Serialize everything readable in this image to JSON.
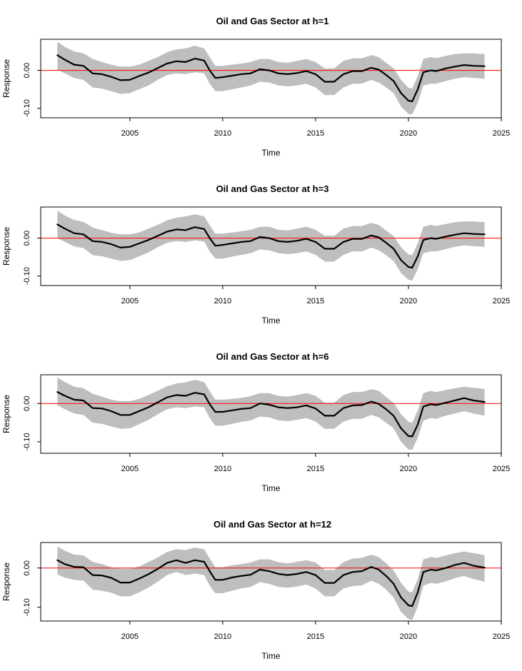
{
  "colors": {
    "band": "#bebebe",
    "line": "#000000",
    "zero_line": "#ff0000",
    "frame": "#000000",
    "background": "#ffffff"
  },
  "chart_data": [
    {
      "type": "line",
      "title": "Oil and Gas Sector  at h=1",
      "xlabel": "Time",
      "ylabel": "Response",
      "xlim": [
        2000.2,
        2025
      ],
      "ylim": [
        -0.125,
        0.082
      ],
      "xticks": [
        2005,
        2010,
        2015,
        2020,
        2025
      ],
      "xtick_labels": [
        "2005",
        "2010",
        "2015",
        "2020",
        "2025"
      ],
      "yticks": [
        -0.1,
        0.0
      ],
      "ytick_labels": [
        "-0.10",
        "0.00"
      ],
      "reference_line": 0,
      "x": [
        2001.1,
        2001.5,
        2002.0,
        2002.5,
        2003.0,
        2003.5,
        2004.0,
        2004.5,
        2005.0,
        2005.5,
        2006.0,
        2006.5,
        2007.0,
        2007.5,
        2008.0,
        2008.5,
        2009.0,
        2009.3,
        2009.6,
        2010.0,
        2010.5,
        2011.0,
        2011.5,
        2012.0,
        2012.5,
        2013.0,
        2013.5,
        2014.0,
        2014.5,
        2015.0,
        2015.5,
        2016.0,
        2016.5,
        2017.0,
        2017.5,
        2018.0,
        2018.4,
        2018.8,
        2019.2,
        2019.6,
        2020.0,
        2020.2,
        2020.5,
        2020.8,
        2021.2,
        2021.5,
        2022.0,
        2022.5,
        2023.0,
        2023.5,
        2024.1
      ],
      "series": [
        {
          "role": "estimate",
          "values": [
            0.04,
            0.028,
            0.015,
            0.012,
            -0.008,
            -0.01,
            -0.017,
            -0.026,
            -0.025,
            -0.015,
            -0.006,
            0.006,
            0.018,
            0.024,
            0.022,
            0.031,
            0.026,
            0.0,
            -0.02,
            -0.018,
            -0.014,
            -0.01,
            -0.008,
            0.003,
            0.0,
            -0.008,
            -0.01,
            -0.007,
            -0.002,
            -0.01,
            -0.03,
            -0.03,
            -0.01,
            -0.002,
            -0.002,
            0.007,
            0.002,
            -0.012,
            -0.028,
            -0.06,
            -0.08,
            -0.082,
            -0.05,
            -0.005,
            0.0,
            -0.002,
            0.005,
            0.01,
            0.014,
            0.012,
            0.011
          ]
        },
        {
          "role": "upper",
          "values": [
            0.075,
            0.062,
            0.05,
            0.045,
            0.03,
            0.022,
            0.015,
            0.01,
            0.01,
            0.015,
            0.025,
            0.035,
            0.048,
            0.055,
            0.058,
            0.065,
            0.058,
            0.035,
            0.012,
            0.012,
            0.015,
            0.018,
            0.022,
            0.03,
            0.03,
            0.022,
            0.02,
            0.025,
            0.03,
            0.022,
            0.005,
            0.005,
            0.025,
            0.032,
            0.032,
            0.04,
            0.035,
            0.02,
            0.005,
            -0.025,
            -0.046,
            -0.048,
            -0.015,
            0.03,
            0.035,
            0.032,
            0.038,
            0.043,
            0.045,
            0.045,
            0.043
          ]
        },
        {
          "role": "lower",
          "values": [
            0.002,
            -0.008,
            -0.02,
            -0.025,
            -0.045,
            -0.048,
            -0.055,
            -0.062,
            -0.06,
            -0.05,
            -0.04,
            -0.025,
            -0.012,
            -0.008,
            -0.01,
            -0.005,
            -0.008,
            -0.035,
            -0.055,
            -0.055,
            -0.05,
            -0.045,
            -0.04,
            -0.03,
            -0.032,
            -0.04,
            -0.042,
            -0.04,
            -0.035,
            -0.045,
            -0.065,
            -0.065,
            -0.045,
            -0.035,
            -0.035,
            -0.025,
            -0.032,
            -0.045,
            -0.06,
            -0.095,
            -0.115,
            -0.116,
            -0.085,
            -0.04,
            -0.035,
            -0.035,
            -0.028,
            -0.022,
            -0.018,
            -0.02,
            -0.022
          ]
        }
      ]
    },
    {
      "type": "line",
      "title": "Oil and Gas Sector  at h=3",
      "xlabel": "Time",
      "ylabel": "Response",
      "xlim": [
        2000.2,
        2025
      ],
      "ylim": [
        -0.125,
        0.082
      ],
      "xticks": [
        2005,
        2010,
        2015,
        2020,
        2025
      ],
      "xtick_labels": [
        "2005",
        "2010",
        "2015",
        "2020",
        "2025"
      ],
      "yticks": [
        -0.1,
        0.0
      ],
      "ytick_labels": [
        "-0.10",
        "0.00"
      ],
      "reference_line": 0,
      "x": [
        2001.1,
        2001.5,
        2002.0,
        2002.5,
        2003.0,
        2003.5,
        2004.0,
        2004.5,
        2005.0,
        2005.5,
        2006.0,
        2006.5,
        2007.0,
        2007.5,
        2008.0,
        2008.5,
        2009.0,
        2009.3,
        2009.6,
        2010.0,
        2010.5,
        2011.0,
        2011.5,
        2012.0,
        2012.5,
        2013.0,
        2013.5,
        2014.0,
        2014.5,
        2015.0,
        2015.5,
        2016.0,
        2016.5,
        2017.0,
        2017.5,
        2018.0,
        2018.4,
        2018.8,
        2019.2,
        2019.6,
        2020.0,
        2020.2,
        2020.5,
        2020.8,
        2021.2,
        2021.5,
        2022.0,
        2022.5,
        2023.0,
        2023.5,
        2024.1
      ],
      "series": [
        {
          "role": "estimate",
          "values": [
            0.036,
            0.025,
            0.013,
            0.01,
            -0.008,
            -0.01,
            -0.016,
            -0.025,
            -0.023,
            -0.014,
            -0.005,
            0.006,
            0.017,
            0.023,
            0.021,
            0.029,
            0.024,
            0.0,
            -0.02,
            -0.018,
            -0.014,
            -0.01,
            -0.008,
            0.003,
            0.0,
            -0.008,
            -0.01,
            -0.007,
            -0.002,
            -0.01,
            -0.028,
            -0.028,
            -0.01,
            -0.002,
            -0.002,
            0.007,
            0.002,
            -0.012,
            -0.028,
            -0.058,
            -0.076,
            -0.078,
            -0.048,
            -0.005,
            0.0,
            -0.002,
            0.004,
            0.009,
            0.013,
            0.011,
            0.01
          ]
        },
        {
          "role": "upper",
          "values": [
            0.072,
            0.06,
            0.048,
            0.043,
            0.028,
            0.021,
            0.014,
            0.01,
            0.01,
            0.015,
            0.025,
            0.035,
            0.047,
            0.054,
            0.057,
            0.063,
            0.057,
            0.034,
            0.012,
            0.012,
            0.015,
            0.018,
            0.022,
            0.03,
            0.03,
            0.022,
            0.02,
            0.025,
            0.03,
            0.022,
            0.006,
            0.006,
            0.025,
            0.032,
            0.032,
            0.04,
            0.035,
            0.02,
            0.005,
            -0.024,
            -0.043,
            -0.045,
            -0.014,
            0.03,
            0.035,
            0.032,
            0.037,
            0.042,
            0.044,
            0.044,
            0.042
          ]
        },
        {
          "role": "lower",
          "values": [
            0.0,
            -0.01,
            -0.022,
            -0.026,
            -0.045,
            -0.048,
            -0.054,
            -0.06,
            -0.058,
            -0.048,
            -0.038,
            -0.024,
            -0.012,
            -0.008,
            -0.01,
            -0.006,
            -0.009,
            -0.035,
            -0.054,
            -0.054,
            -0.049,
            -0.044,
            -0.04,
            -0.03,
            -0.032,
            -0.04,
            -0.042,
            -0.04,
            -0.035,
            -0.044,
            -0.062,
            -0.062,
            -0.044,
            -0.035,
            -0.035,
            -0.025,
            -0.032,
            -0.045,
            -0.06,
            -0.092,
            -0.11,
            -0.112,
            -0.082,
            -0.04,
            -0.035,
            -0.035,
            -0.029,
            -0.023,
            -0.019,
            -0.021,
            -0.023
          ]
        }
      ]
    },
    {
      "type": "line",
      "title": "Oil and Gas Sector  at h=6",
      "xlabel": "Time",
      "ylabel": "Response",
      "xlim": [
        2000.2,
        2025
      ],
      "ylim": [
        -0.13,
        0.075
      ],
      "xticks": [
        2005,
        2010,
        2015,
        2020,
        2025
      ],
      "xtick_labels": [
        "2005",
        "2010",
        "2015",
        "2020",
        "2025"
      ],
      "yticks": [
        -0.1,
        0.0
      ],
      "ytick_labels": [
        "-0.10",
        "0.00"
      ],
      "reference_line": 0,
      "x": [
        2001.1,
        2001.5,
        2002.0,
        2002.5,
        2003.0,
        2003.5,
        2004.0,
        2004.5,
        2005.0,
        2005.5,
        2006.0,
        2006.5,
        2007.0,
        2007.5,
        2008.0,
        2008.5,
        2009.0,
        2009.3,
        2009.6,
        2010.0,
        2010.5,
        2011.0,
        2011.5,
        2012.0,
        2012.5,
        2013.0,
        2013.5,
        2014.0,
        2014.5,
        2015.0,
        2015.5,
        2016.0,
        2016.5,
        2017.0,
        2017.5,
        2018.0,
        2018.4,
        2018.8,
        2019.2,
        2019.6,
        2020.0,
        2020.2,
        2020.5,
        2020.8,
        2021.2,
        2021.5,
        2022.0,
        2022.5,
        2023.0,
        2023.5,
        2024.1
      ],
      "series": [
        {
          "role": "estimate",
          "values": [
            0.03,
            0.02,
            0.01,
            0.008,
            -0.012,
            -0.013,
            -0.02,
            -0.03,
            -0.03,
            -0.02,
            -0.01,
            0.003,
            0.016,
            0.022,
            0.02,
            0.028,
            0.024,
            -0.002,
            -0.022,
            -0.022,
            -0.018,
            -0.014,
            -0.012,
            0.0,
            -0.003,
            -0.01,
            -0.012,
            -0.01,
            -0.005,
            -0.013,
            -0.032,
            -0.032,
            -0.012,
            -0.005,
            -0.004,
            0.005,
            -0.001,
            -0.015,
            -0.032,
            -0.065,
            -0.085,
            -0.086,
            -0.055,
            -0.008,
            -0.002,
            -0.004,
            0.002,
            0.008,
            0.014,
            0.008,
            0.004
          ]
        },
        {
          "role": "upper",
          "values": [
            0.068,
            0.056,
            0.044,
            0.04,
            0.025,
            0.018,
            0.01,
            0.006,
            0.006,
            0.012,
            0.022,
            0.033,
            0.045,
            0.052,
            0.055,
            0.062,
            0.056,
            0.032,
            0.01,
            0.01,
            0.012,
            0.015,
            0.019,
            0.027,
            0.027,
            0.02,
            0.018,
            0.022,
            0.027,
            0.02,
            0.002,
            0.002,
            0.022,
            0.03,
            0.03,
            0.037,
            0.033,
            0.017,
            0.002,
            -0.028,
            -0.048,
            -0.05,
            -0.018,
            0.027,
            0.033,
            0.03,
            0.035,
            0.04,
            0.044,
            0.041,
            0.038
          ]
        },
        {
          "role": "lower",
          "values": [
            -0.005,
            -0.015,
            -0.026,
            -0.03,
            -0.05,
            -0.053,
            -0.06,
            -0.066,
            -0.065,
            -0.054,
            -0.043,
            -0.028,
            -0.015,
            -0.01,
            -0.012,
            -0.008,
            -0.01,
            -0.038,
            -0.058,
            -0.058,
            -0.053,
            -0.048,
            -0.044,
            -0.034,
            -0.036,
            -0.044,
            -0.046,
            -0.043,
            -0.038,
            -0.047,
            -0.066,
            -0.066,
            -0.047,
            -0.04,
            -0.04,
            -0.03,
            -0.036,
            -0.05,
            -0.065,
            -0.1,
            -0.12,
            -0.121,
            -0.09,
            -0.045,
            -0.038,
            -0.04,
            -0.032,
            -0.026,
            -0.02,
            -0.026,
            -0.032
          ]
        }
      ]
    },
    {
      "type": "line",
      "title": "Oil and Gas Sector  at h=12",
      "xlabel": "Time",
      "ylabel": "Response",
      "xlim": [
        2000.2,
        2025
      ],
      "ylim": [
        -0.135,
        0.065
      ],
      "xticks": [
        2005,
        2010,
        2015,
        2020,
        2025
      ],
      "xtick_labels": [
        "2005",
        "2010",
        "2015",
        "2020",
        "2025"
      ],
      "yticks": [
        -0.1,
        0.0
      ],
      "ytick_labels": [
        "-0.10",
        "0.00"
      ],
      "reference_line": 0,
      "x": [
        2001.1,
        2001.5,
        2002.0,
        2002.5,
        2003.0,
        2003.5,
        2004.0,
        2004.5,
        2005.0,
        2005.5,
        2006.0,
        2006.5,
        2007.0,
        2007.5,
        2008.0,
        2008.5,
        2009.0,
        2009.3,
        2009.6,
        2010.0,
        2010.5,
        2011.0,
        2011.5,
        2012.0,
        2012.5,
        2013.0,
        2013.5,
        2014.0,
        2014.5,
        2015.0,
        2015.5,
        2016.0,
        2016.5,
        2017.0,
        2017.5,
        2018.0,
        2018.4,
        2018.8,
        2019.2,
        2019.6,
        2020.0,
        2020.2,
        2020.5,
        2020.8,
        2021.2,
        2021.5,
        2022.0,
        2022.5,
        2023.0,
        2023.5,
        2024.1
      ],
      "series": [
        {
          "role": "estimate",
          "values": [
            0.02,
            0.01,
            0.003,
            0.002,
            -0.018,
            -0.019,
            -0.025,
            -0.037,
            -0.037,
            -0.027,
            -0.016,
            -0.002,
            0.013,
            0.02,
            0.013,
            0.02,
            0.016,
            -0.008,
            -0.03,
            -0.03,
            -0.024,
            -0.02,
            -0.017,
            -0.004,
            -0.008,
            -0.015,
            -0.018,
            -0.015,
            -0.01,
            -0.018,
            -0.038,
            -0.038,
            -0.018,
            -0.01,
            -0.008,
            0.003,
            -0.004,
            -0.02,
            -0.04,
            -0.075,
            -0.095,
            -0.097,
            -0.062,
            -0.01,
            -0.004,
            -0.006,
            0.0,
            0.008,
            0.013,
            0.006,
            0.001
          ]
        },
        {
          "role": "upper",
          "values": [
            0.055,
            0.044,
            0.034,
            0.032,
            0.016,
            0.01,
            0.002,
            -0.002,
            -0.002,
            0.004,
            0.015,
            0.027,
            0.041,
            0.048,
            0.046,
            0.052,
            0.048,
            0.024,
            0.002,
            0.002,
            0.007,
            0.01,
            0.014,
            0.022,
            0.022,
            0.015,
            0.012,
            0.016,
            0.02,
            0.014,
            -0.005,
            -0.005,
            0.015,
            0.024,
            0.026,
            0.034,
            0.028,
            0.012,
            -0.006,
            -0.038,
            -0.06,
            -0.062,
            -0.028,
            0.022,
            0.028,
            0.026,
            0.032,
            0.038,
            0.042,
            0.038,
            0.033
          ]
        },
        {
          "role": "lower",
          "values": [
            -0.016,
            -0.025,
            -0.03,
            -0.032,
            -0.055,
            -0.058,
            -0.063,
            -0.072,
            -0.072,
            -0.062,
            -0.05,
            -0.035,
            -0.018,
            -0.01,
            -0.018,
            -0.014,
            -0.018,
            -0.045,
            -0.064,
            -0.064,
            -0.058,
            -0.052,
            -0.048,
            -0.036,
            -0.04,
            -0.048,
            -0.05,
            -0.047,
            -0.042,
            -0.052,
            -0.072,
            -0.072,
            -0.052,
            -0.046,
            -0.044,
            -0.032,
            -0.04,
            -0.055,
            -0.075,
            -0.112,
            -0.13,
            -0.132,
            -0.098,
            -0.045,
            -0.038,
            -0.04,
            -0.034,
            -0.026,
            -0.02,
            -0.028,
            -0.035
          ]
        }
      ]
    }
  ]
}
